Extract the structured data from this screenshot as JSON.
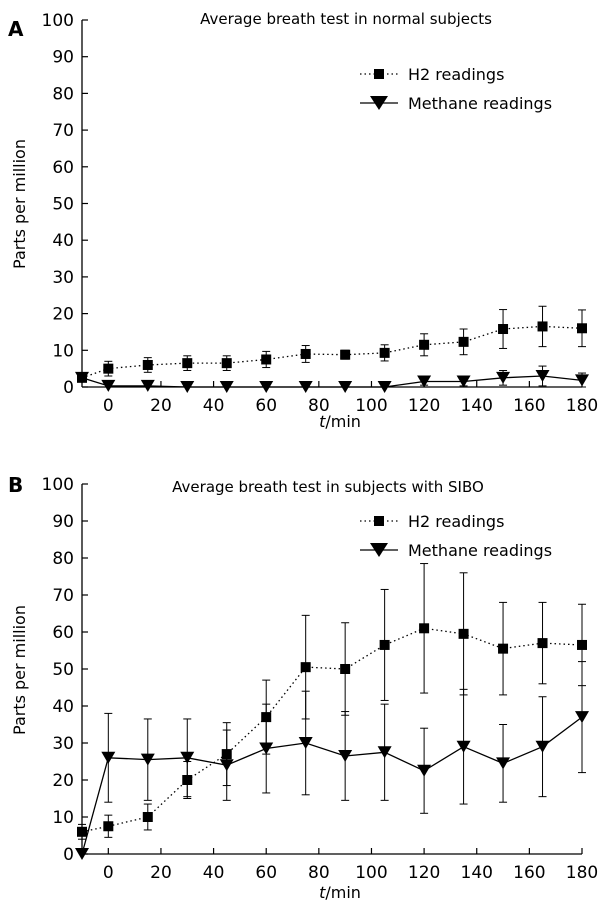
{
  "chart_data": [
    {
      "panel": "A",
      "type": "line",
      "title": "Average breath test in normal subjects",
      "xlabel_italic": "t",
      "xlabel_unit": "/min",
      "ylabel": "Parts per million",
      "ylim": [
        0,
        100
      ],
      "yticks": [
        0,
        10,
        20,
        30,
        40,
        50,
        60,
        70,
        80,
        90,
        100
      ],
      "xlim": [
        -10,
        180
      ],
      "xticks": [
        0,
        20,
        40,
        60,
        80,
        100,
        120,
        140,
        160,
        180
      ],
      "legend_position": "top-right",
      "series": [
        {
          "name": "H2 readings",
          "marker": "square",
          "line_style": "dotted",
          "x": [
            -10,
            0,
            15,
            30,
            45,
            60,
            75,
            90,
            105,
            120,
            135,
            150,
            165,
            180
          ],
          "y": [
            2.5,
            5,
            6,
            6.5,
            6.5,
            7.5,
            9,
            8.8,
            9.3,
            11.5,
            12.3,
            15.8,
            16.5,
            16
          ],
          "err": [
            0.8,
            2,
            2,
            2,
            2,
            2.2,
            2.3,
            1.2,
            2.2,
            3,
            3.5,
            5.3,
            5.5,
            5
          ]
        },
        {
          "name": "Methane readings",
          "marker": "triangle-down",
          "line_style": "solid",
          "x": [
            -10,
            0,
            15,
            30,
            45,
            60,
            75,
            90,
            105,
            120,
            135,
            150,
            165,
            180
          ],
          "y": [
            2.5,
            0.3,
            0.3,
            0,
            0,
            0,
            0,
            0,
            0,
            1.5,
            1.5,
            2.5,
            3,
            1.8
          ],
          "err": [
            0,
            0.5,
            0.5,
            0.3,
            0.3,
            0.3,
            0.3,
            0.3,
            0.3,
            1,
            1.2,
            2,
            2.7,
            2
          ]
        }
      ]
    },
    {
      "panel": "B",
      "type": "line",
      "title": "Average breath test in subjects with SIBO",
      "xlabel_italic": "t",
      "xlabel_unit": "/min",
      "ylabel": "Parts per million",
      "ylim": [
        0,
        100
      ],
      "yticks": [
        0,
        10,
        20,
        30,
        40,
        50,
        60,
        70,
        80,
        90,
        100
      ],
      "xlim": [
        -10,
        180
      ],
      "xticks": [
        0,
        20,
        40,
        60,
        80,
        100,
        120,
        140,
        160,
        180
      ],
      "legend_position": "top-right",
      "series": [
        {
          "name": "H2 readings",
          "marker": "square",
          "line_style": "dotted",
          "x": [
            -10,
            0,
            15,
            30,
            45,
            60,
            75,
            90,
            105,
            120,
            135,
            150,
            165,
            180
          ],
          "y": [
            6,
            7.5,
            10,
            20,
            27,
            37,
            50.5,
            50,
            56.5,
            61,
            59.5,
            55.5,
            57,
            56.5
          ],
          "err": [
            2,
            3,
            3.5,
            5,
            8.5,
            10,
            14,
            12.5,
            15,
            17.5,
            16.5,
            12.5,
            11,
            11
          ]
        },
        {
          "name": "Methane readings",
          "marker": "triangle-down",
          "line_style": "solid",
          "x": [
            -10,
            0,
            15,
            30,
            45,
            60,
            75,
            90,
            105,
            120,
            135,
            150,
            165,
            180
          ],
          "y": [
            0,
            26,
            25.5,
            26,
            24,
            28.5,
            30,
            26.5,
            27.5,
            22.5,
            29,
            24.5,
            29,
            37
          ],
          "err": [
            0,
            12,
            11,
            10.5,
            9.5,
            12,
            14,
            12,
            13,
            11.5,
            15.5,
            10.5,
            13.5,
            15
          ]
        }
      ]
    }
  ]
}
